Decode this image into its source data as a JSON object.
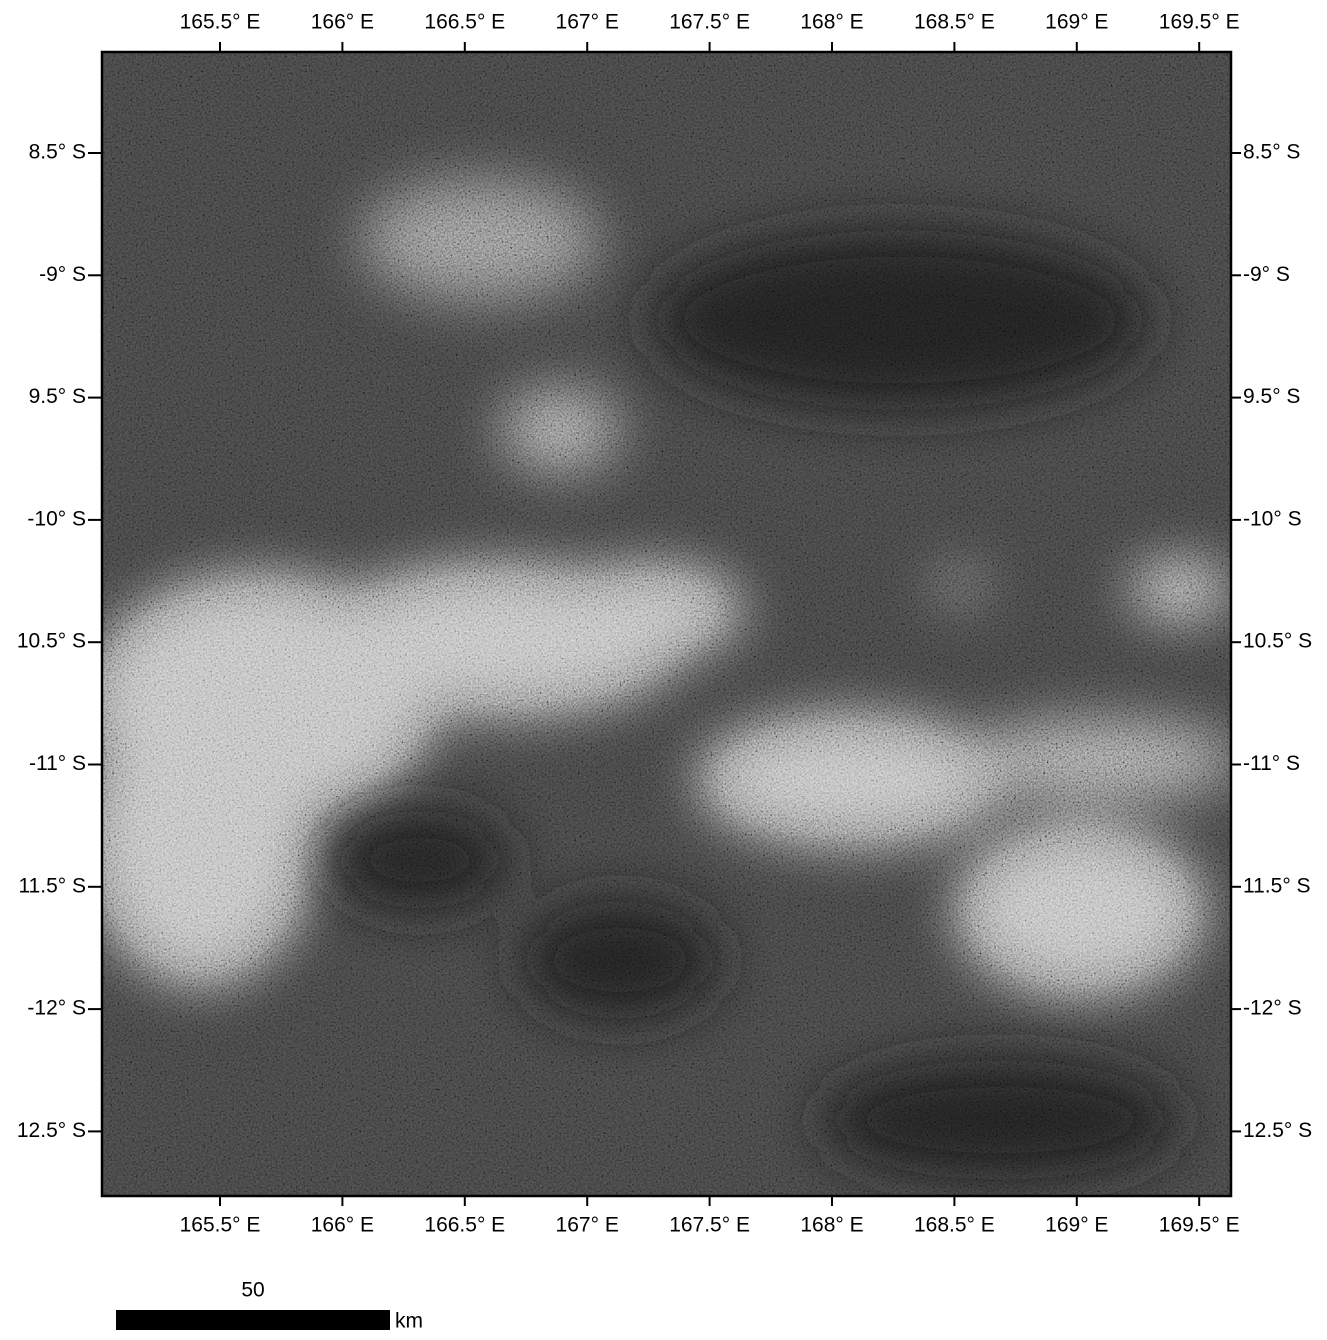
{
  "map": {
    "longitude_labels": [
      "165.5° E",
      "166° E",
      "166.5° E",
      "167° E",
      "167.5° E",
      "168° E",
      "168.5° E",
      "169° E",
      "169.5° E"
    ],
    "latitude_labels": [
      "8.5° S",
      "-9° S",
      "9.5° S",
      "-10° S",
      "10.5° S",
      "-11° S",
      "11.5° S",
      "-12° S",
      "12.5° S"
    ],
    "scale_bar": {
      "label": "50",
      "unit": "km"
    }
  }
}
